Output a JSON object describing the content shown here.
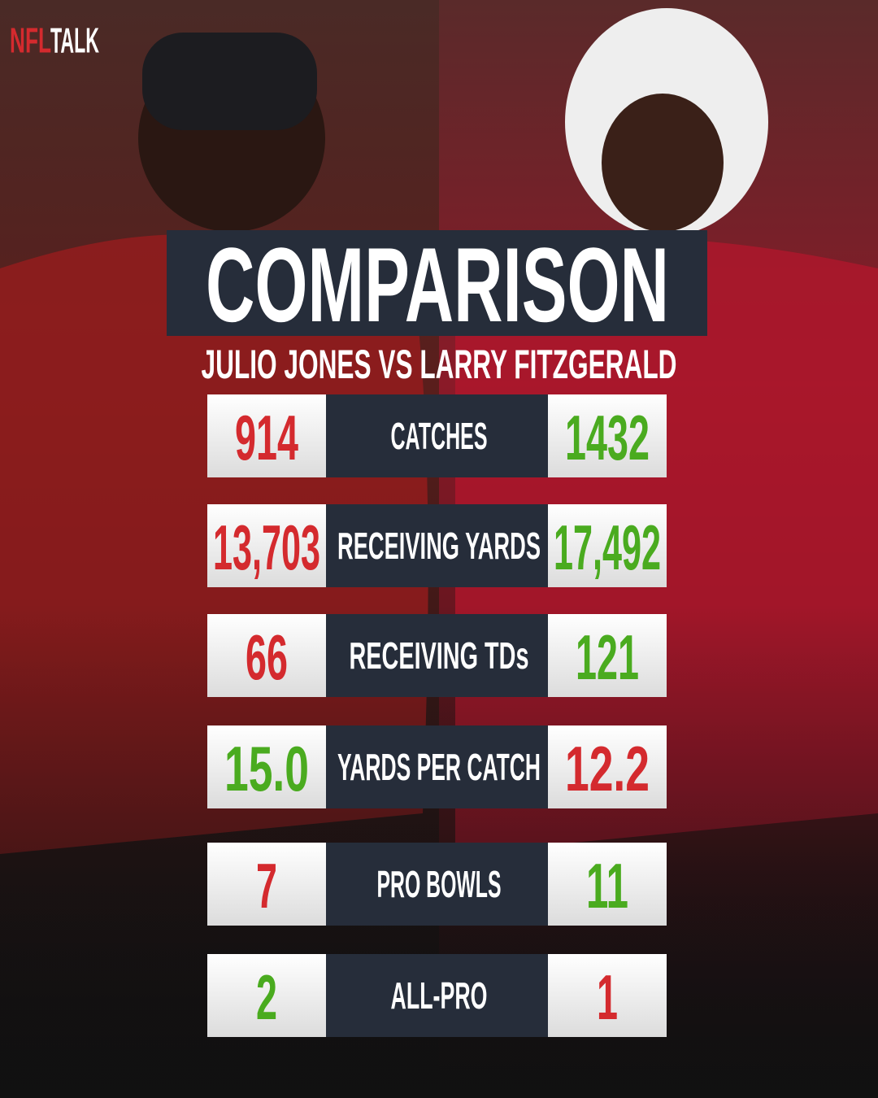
{
  "brand": {
    "left": "NFL",
    "right": "TALK"
  },
  "title": "COMPARISON",
  "subtitle": "JULIO JONES VS LARRY FITZGERALD",
  "rows": [
    {
      "label": "CATCHES",
      "left": "914",
      "right": "1432",
      "left_color": "#d42a2e",
      "right_color": "#4aab1f"
    },
    {
      "label": "RECEIVING YARDS",
      "left": "13,703",
      "right": "17,492",
      "left_color": "#d42a2e",
      "right_color": "#4aab1f"
    },
    {
      "label": "RECEIVING TDs",
      "left": "66",
      "right": "121",
      "left_color": "#d42a2e",
      "right_color": "#4aab1f"
    },
    {
      "label": "YARDS PER CATCH",
      "left": "15.0",
      "right": "12.2",
      "left_color": "#4aab1f",
      "right_color": "#d42a2e"
    },
    {
      "label": "PRO BOWLS",
      "left": "7",
      "right": "11",
      "left_color": "#d42a2e",
      "right_color": "#4aab1f"
    },
    {
      "label": "ALL-PRO",
      "left": "2",
      "right": "1",
      "left_color": "#4aab1f",
      "right_color": "#d42a2e"
    }
  ]
}
